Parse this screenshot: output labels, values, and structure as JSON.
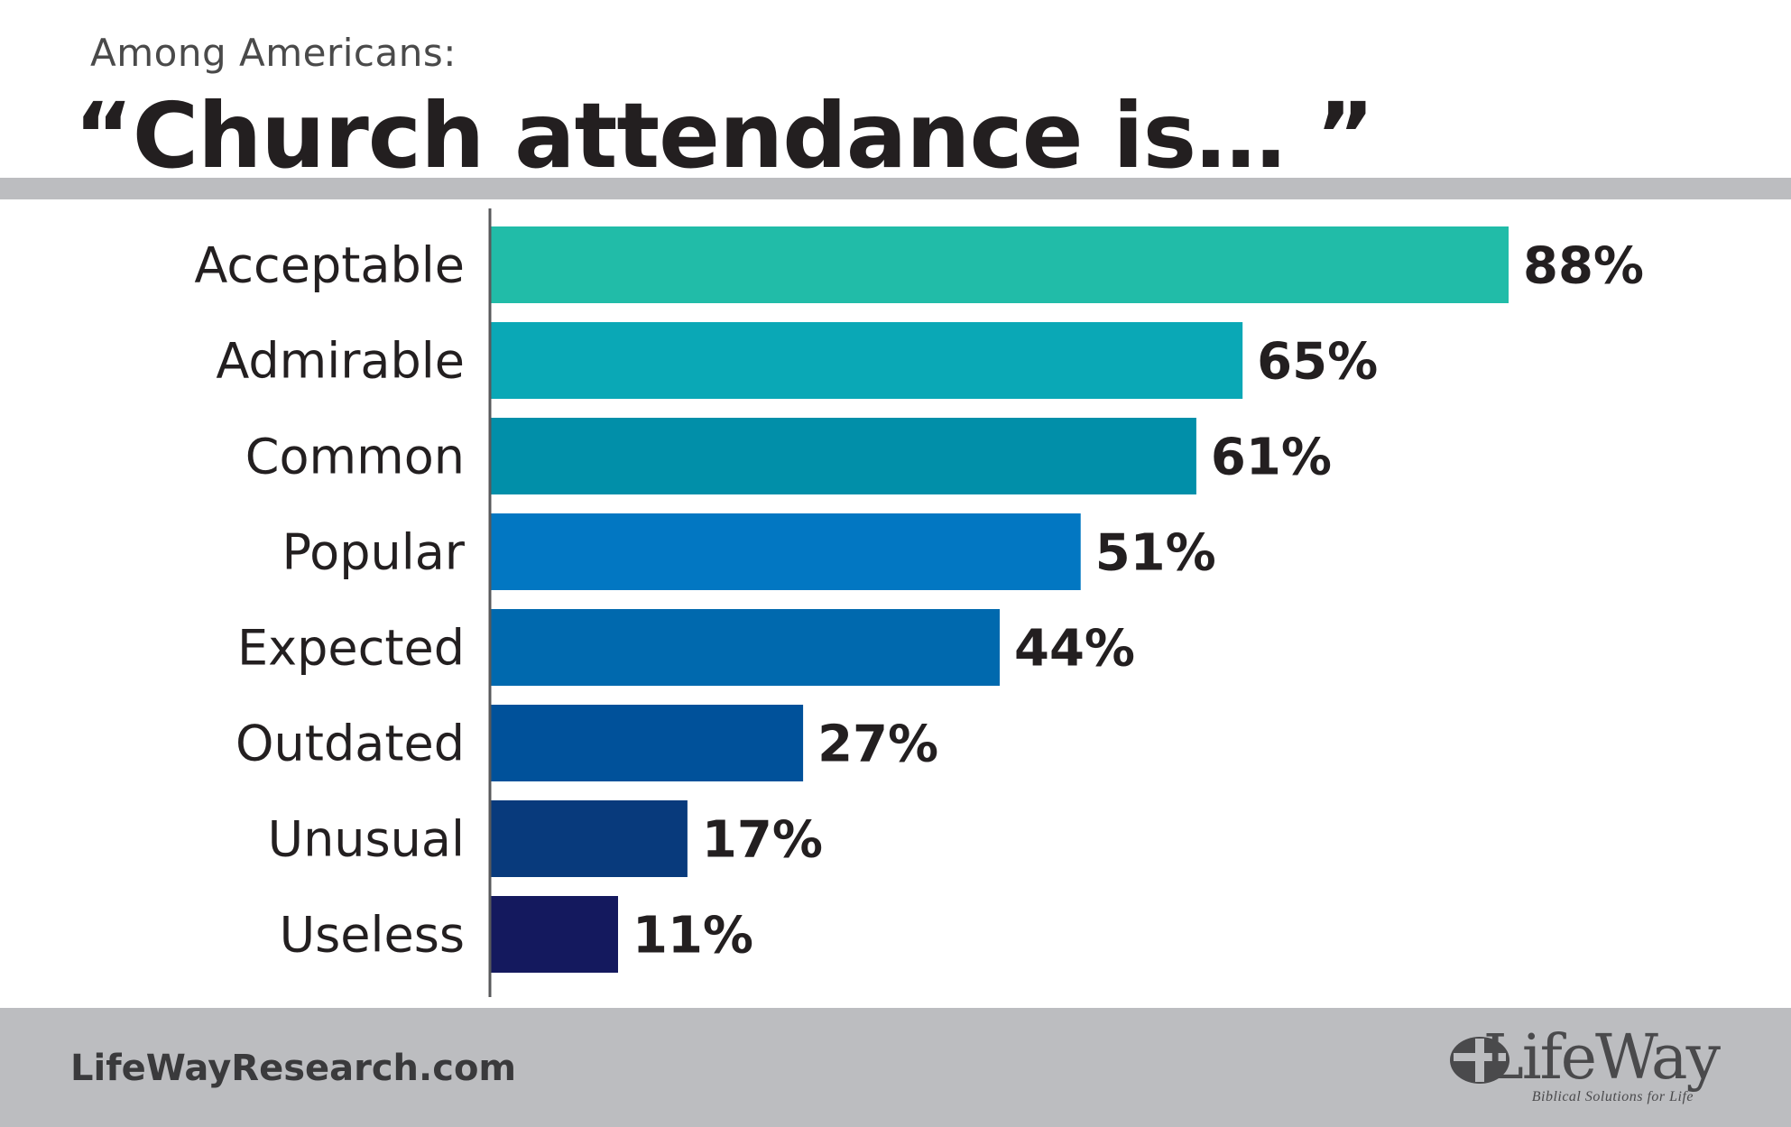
{
  "header": {
    "kicker": "Among Americans:",
    "title": "“Church attendance is… ”"
  },
  "chart_data": {
    "type": "bar",
    "orientation": "horizontal",
    "title": "“Church attendance is… ”",
    "subtitle": "Among Americans:",
    "categories": [
      "Acceptable",
      "Admirable",
      "Common",
      "Popular",
      "Expected",
      "Outdated",
      "Unusual",
      "Useless"
    ],
    "values": [
      88,
      65,
      61,
      51,
      44,
      27,
      17,
      11
    ],
    "value_labels": [
      "88%",
      "65%",
      "61%",
      "51%",
      "44%",
      "27%",
      "17%",
      "11%"
    ],
    "bar_colors": [
      "#21bca8",
      "#0aa8b6",
      "#018fa9",
      "#0277c2",
      "#0069ae",
      "#00519a",
      "#083a7c",
      "#14195e"
    ],
    "xlim": [
      0,
      100
    ],
    "grid": false,
    "legend": "none"
  },
  "footer": {
    "site": "LifeWayResearch.com",
    "logo_name": "LifeWay",
    "logo_tagline": "Biblical Solutions for Life",
    "logo_icon": "cross-circle-icon"
  }
}
